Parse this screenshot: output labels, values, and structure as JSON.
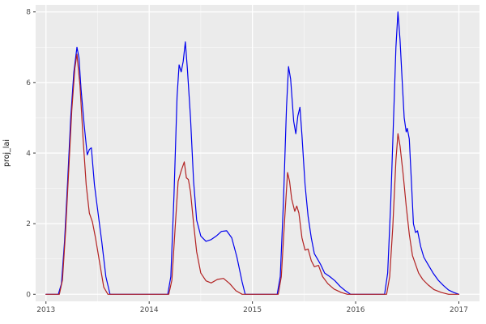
{
  "theme": {
    "figure_bg": "#FFFFFF",
    "panel_bg": "#EBEBEB",
    "grid_major": "#FFFFFF",
    "grid_minor": "#FFFFFF",
    "tick_mark_color": "#333333",
    "tick_text_color": "#4D4D4D",
    "axis_title_color": "#1A1A1A"
  },
  "chart_data": {
    "type": "line",
    "title": "",
    "xlabel": "",
    "ylabel": "proj_lai",
    "xlim": [
      2012.9,
      2017.2
    ],
    "ylim": [
      -0.2,
      8.2
    ],
    "xticks": [
      2013,
      2014,
      2015,
      2016,
      2017
    ],
    "yticks": [
      0,
      2,
      4,
      6,
      8
    ],
    "xticks_minor": [
      2013.5,
      2014.5,
      2015.5,
      2016.5
    ],
    "yticks_minor": [
      1,
      3,
      5,
      7
    ],
    "grid": true,
    "legend": "none",
    "series": [
      {
        "name": "blue",
        "color": "#0000EE",
        "x": [
          2013.0,
          2013.12,
          2013.15,
          2013.18,
          2013.21,
          2013.24,
          2013.27,
          2013.3,
          2013.32,
          2013.34,
          2013.37,
          2013.4,
          2013.42,
          2013.44,
          2013.47,
          2013.5,
          2013.54,
          2013.58,
          2013.62,
          2014.18,
          2014.21,
          2014.24,
          2014.27,
          2014.29,
          2014.31,
          2014.33,
          2014.35,
          2014.37,
          2014.4,
          2014.43,
          2014.46,
          2014.5,
          2014.55,
          2014.6,
          2014.65,
          2014.7,
          2014.75,
          2014.8,
          2014.85,
          2014.9,
          2014.93,
          2015.24,
          2015.27,
          2015.3,
          2015.33,
          2015.35,
          2015.37,
          2015.4,
          2015.42,
          2015.44,
          2015.46,
          2015.48,
          2015.51,
          2015.54,
          2015.57,
          2015.6,
          2015.63,
          2015.66,
          2015.7,
          2015.75,
          2015.8,
          2015.85,
          2015.9,
          2015.95,
          2016.28,
          2016.31,
          2016.34,
          2016.37,
          2016.39,
          2016.41,
          2016.43,
          2016.45,
          2016.47,
          2016.49,
          2016.5,
          2016.52,
          2016.54,
          2016.56,
          2016.58,
          2016.6,
          2016.63,
          2016.66,
          2016.7,
          2016.75,
          2016.8,
          2016.85,
          2016.9,
          2016.95,
          2017.0
        ],
        "y": [
          0,
          0,
          0.3,
          1.5,
          3.2,
          5.0,
          6.3,
          7.0,
          6.7,
          5.8,
          4.8,
          3.95,
          4.1,
          4.15,
          3.1,
          2.4,
          1.5,
          0.5,
          0,
          0,
          0.5,
          2.8,
          5.6,
          6.5,
          6.3,
          6.6,
          7.15,
          6.4,
          5.0,
          3.2,
          2.1,
          1.65,
          1.5,
          1.55,
          1.65,
          1.78,
          1.8,
          1.6,
          1.05,
          0.35,
          0,
          0,
          0.5,
          2.6,
          5.3,
          6.45,
          6.1,
          4.9,
          4.55,
          5.05,
          5.3,
          4.5,
          3.1,
          2.2,
          1.6,
          1.15,
          1.0,
          0.85,
          0.6,
          0.5,
          0.38,
          0.22,
          0.1,
          0,
          0,
          0.6,
          2.6,
          5.2,
          7.0,
          8.0,
          7.2,
          6.1,
          5.0,
          4.6,
          4.7,
          4.4,
          3.2,
          2.0,
          1.75,
          1.8,
          1.35,
          1.05,
          0.85,
          0.6,
          0.4,
          0.25,
          0.12,
          0.05,
          0
        ]
      },
      {
        "name": "red",
        "color": "#B22222",
        "x": [
          2013.0,
          2013.13,
          2013.16,
          2013.19,
          2013.22,
          2013.25,
          2013.28,
          2013.3,
          2013.33,
          2013.36,
          2013.39,
          2013.42,
          2013.45,
          2013.48,
          2013.52,
          2013.56,
          2013.6,
          2014.19,
          2014.22,
          2014.25,
          2014.28,
          2014.31,
          2014.34,
          2014.36,
          2014.38,
          2014.4,
          2014.43,
          2014.46,
          2014.5,
          2014.55,
          2014.6,
          2014.66,
          2014.72,
          2014.78,
          2014.84,
          2014.9,
          2015.25,
          2015.28,
          2015.31,
          2015.34,
          2015.36,
          2015.38,
          2015.41,
          2015.43,
          2015.45,
          2015.48,
          2015.51,
          2015.54,
          2015.57,
          2015.6,
          2015.64,
          2015.68,
          2015.73,
          2015.79,
          2015.86,
          2015.92,
          2016.3,
          2016.33,
          2016.36,
          2016.39,
          2016.41,
          2016.43,
          2016.46,
          2016.49,
          2016.52,
          2016.55,
          2016.58,
          2016.61,
          2016.65,
          2016.7,
          2016.76,
          2016.83,
          2016.9,
          2017.0
        ],
        "y": [
          0,
          0,
          0.4,
          1.8,
          3.5,
          5.2,
          6.4,
          6.8,
          5.9,
          4.4,
          3.1,
          2.3,
          2.05,
          1.6,
          0.9,
          0.2,
          0,
          0,
          0.4,
          1.8,
          3.2,
          3.5,
          3.75,
          3.3,
          3.25,
          2.9,
          2.0,
          1.2,
          0.6,
          0.38,
          0.32,
          0.42,
          0.45,
          0.3,
          0.1,
          0,
          0,
          0.5,
          2.0,
          3.45,
          3.2,
          2.7,
          2.35,
          2.5,
          2.3,
          1.6,
          1.25,
          1.28,
          0.95,
          0.78,
          0.82,
          0.5,
          0.3,
          0.15,
          0.05,
          0,
          0,
          0.5,
          1.9,
          3.8,
          4.55,
          4.2,
          3.4,
          2.5,
          1.7,
          1.1,
          0.85,
          0.6,
          0.42,
          0.27,
          0.13,
          0.05,
          0,
          0
        ]
      }
    ]
  }
}
